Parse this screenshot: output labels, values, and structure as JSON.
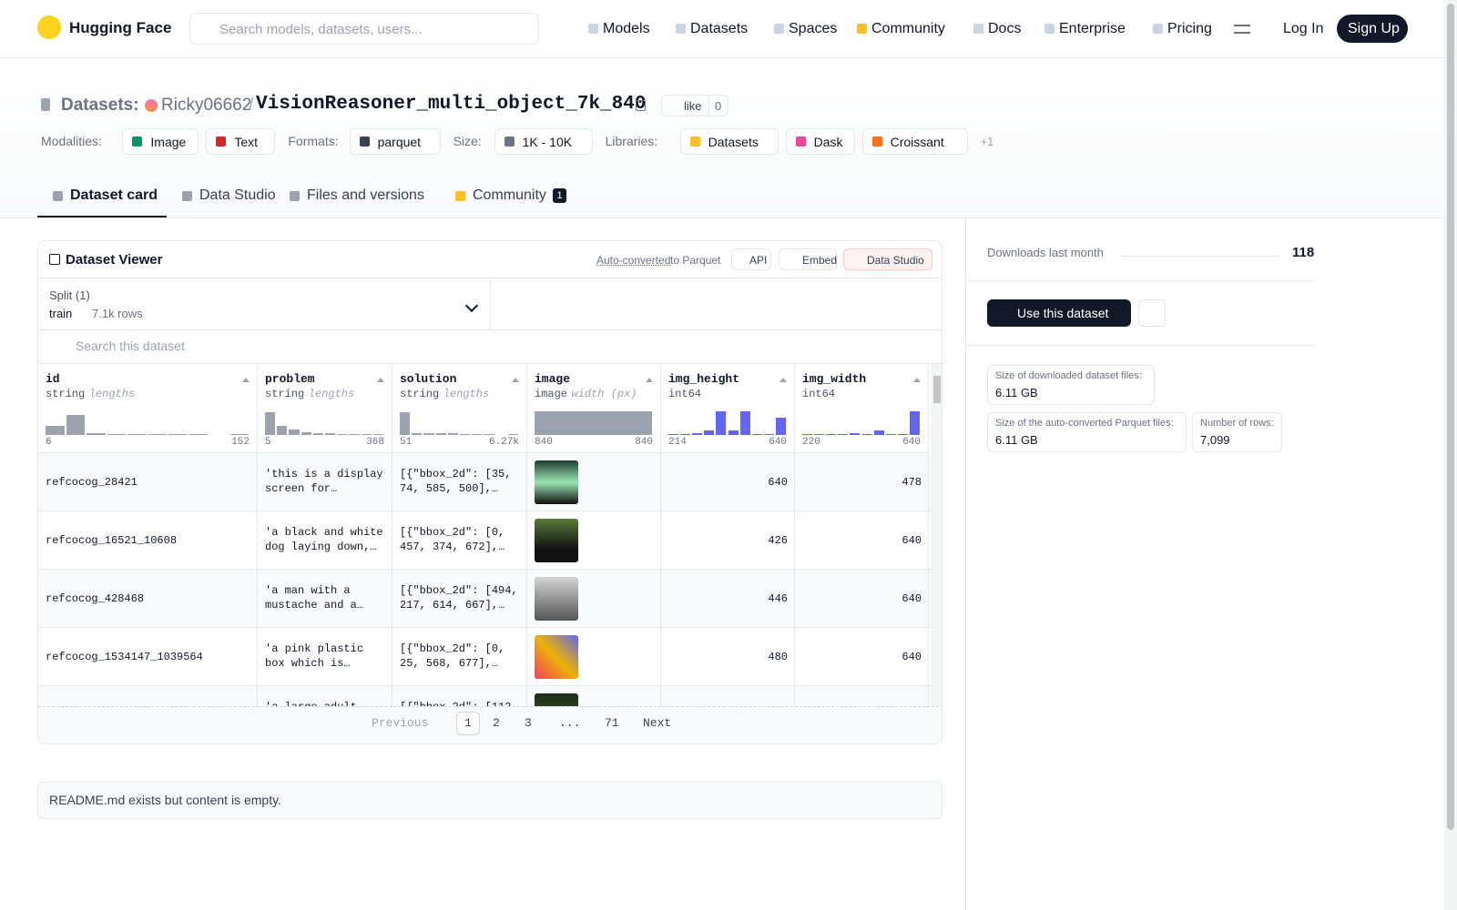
{
  "nav": {
    "brand": "Hugging Face",
    "search": "Search models, datasets, users...",
    "links": [
      "Models",
      "Datasets",
      "Spaces",
      "Community",
      "Docs",
      "Enterprise",
      "Pricing"
    ],
    "login": "Log In",
    "signup": "Sign Up"
  },
  "header": {
    "prefix": "Datasets:",
    "owner": "Ricky06662",
    "separator": "/",
    "name": "VisionReasoner_multi_object_7k_840",
    "like": "like",
    "likes": 0,
    "tag_groups": [
      {
        "label": "Modalities:",
        "items": [
          "Image",
          "Text"
        ]
      },
      {
        "label": "Formats:",
        "items": [
          "parquet"
        ]
      },
      {
        "label": "Size:",
        "items": [
          "1K - 10K"
        ]
      },
      {
        "label": "Libraries:",
        "items": [
          "Datasets",
          "Dask",
          "Croissant"
        ]
      }
    ],
    "more": "+1"
  },
  "tabs": [
    "Dataset card",
    "Data Studio",
    "Files and versions",
    "Community"
  ],
  "community_count": 1,
  "viewer": {
    "title": "Dataset Viewer",
    "auto_converted": "Auto-converted",
    "to_parquet": "to Parquet",
    "buttons": [
      "API",
      "Embed",
      "Data Studio"
    ],
    "split_label": "Split (1)",
    "split": "train",
    "rows_count": "7.1k rows",
    "search": "Search this dataset",
    "columns": [
      {
        "name": "id",
        "dtype": "string",
        "stat": "lengths",
        "min": 6,
        "max": 152,
        "color": "#9ca3af",
        "bars": [
          40,
          85,
          8,
          4,
          4,
          4,
          4,
          4,
          0,
          4
        ]
      },
      {
        "name": "problem",
        "dtype": "string",
        "stat": "lengths",
        "min": 5,
        "max": 368,
        "color": "#9ca3af",
        "bars": [
          95,
          40,
          25,
          10,
          8,
          6,
          5,
          5,
          4,
          4
        ]
      },
      {
        "name": "solution",
        "dtype": "string",
        "stat": "lengths",
        "min": 51,
        "max": "6.27k",
        "color": "#9ca3af",
        "bars": [
          95,
          8,
          6,
          6,
          6,
          5,
          5,
          4,
          0,
          5
        ]
      },
      {
        "name": "image",
        "dtype": "image",
        "stat": "width (px)",
        "min": 840,
        "max": 840,
        "color": "#9ca3af",
        "bars": [
          100
        ]
      },
      {
        "name": "img_height",
        "dtype": "int64",
        "stat": null,
        "min": 214,
        "max": 640,
        "color": "#6366f1",
        "bars": [
          5,
          5,
          8,
          18,
          100,
          18,
          100,
          5,
          5,
          75
        ]
      },
      {
        "name": "img_width",
        "dtype": "int64",
        "stat": null,
        "min": 220,
        "max": 640,
        "color": "#6366f1",
        "bars": [
          5,
          5,
          5,
          5,
          8,
          5,
          18,
          5,
          5,
          100
        ]
      }
    ],
    "rows": [
      {
        "id": "refcocog_28421",
        "problem": "'this is a display screen for…",
        "solution": "[{\"bbox_2d\": [35, 74, 585, 500],…",
        "img_height": 640,
        "img_width": 478
      },
      {
        "id": "refcocog_16521_10608",
        "problem": "'a black and white dog laying down,…",
        "solution": "[{\"bbox_2d\": [0, 457, 374, 672],…",
        "img_height": 426,
        "img_width": 640
      },
      {
        "id": "refcocog_428468",
        "problem": "'a man with a mustache and a…",
        "solution": "[{\"bbox_2d\": [494, 217, 614, 667],…",
        "img_height": 446,
        "img_width": 640
      },
      {
        "id": "refcocog_1534147_1039564",
        "problem": "'a pink plastic box which is…",
        "solution": "[{\"bbox_2d\": [0, 25, 568, 677],…",
        "img_height": 480,
        "img_width": 640
      },
      {
        "problem": "'a large adult",
        "solution": "[{\"bbox_2d\": [112,"
      }
    ],
    "pagination": [
      "Previous",
      "1",
      "2",
      "3",
      "...",
      "71",
      "Next"
    ]
  },
  "readme": "README.md exists but content is empty.",
  "sidebar": {
    "downloads_label": "Downloads last month",
    "downloads": 118,
    "use_button": "Use this dataset",
    "stats": [
      {
        "label": "Size of downloaded dataset files:",
        "value": "6.11 GB"
      },
      {
        "label": "Size of the auto-converted Parquet files:",
        "value": "6.11 GB"
      },
      {
        "label": "Number of rows:",
        "value": "7,099"
      }
    ]
  }
}
